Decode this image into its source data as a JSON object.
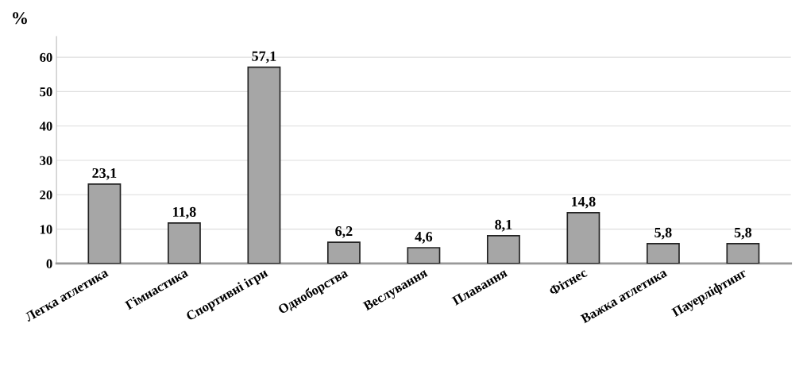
{
  "chart_data": {
    "type": "bar",
    "ylabel": "%",
    "categories": [
      "Легка атлетика",
      "Гімнастика",
      "Спортивні ігри",
      "Одноборства",
      "Веслування",
      "Плавання",
      "Фітнес",
      "Важка атлетика",
      "Пауерліфтинг"
    ],
    "values": [
      23.1,
      11.8,
      57.1,
      6.2,
      4.6,
      8.1,
      14.8,
      5.8,
      5.8
    ],
    "value_labels": [
      "23,1",
      "11,8",
      "57,1",
      "6,2",
      "4,6",
      "8,1",
      "14,8",
      "5,8",
      "5,8"
    ],
    "color": "#a6a6a6",
    "ylim": [
      0,
      66
    ],
    "yticks": [
      0,
      10,
      20,
      30,
      40,
      50,
      60
    ],
    "grid": "y"
  }
}
